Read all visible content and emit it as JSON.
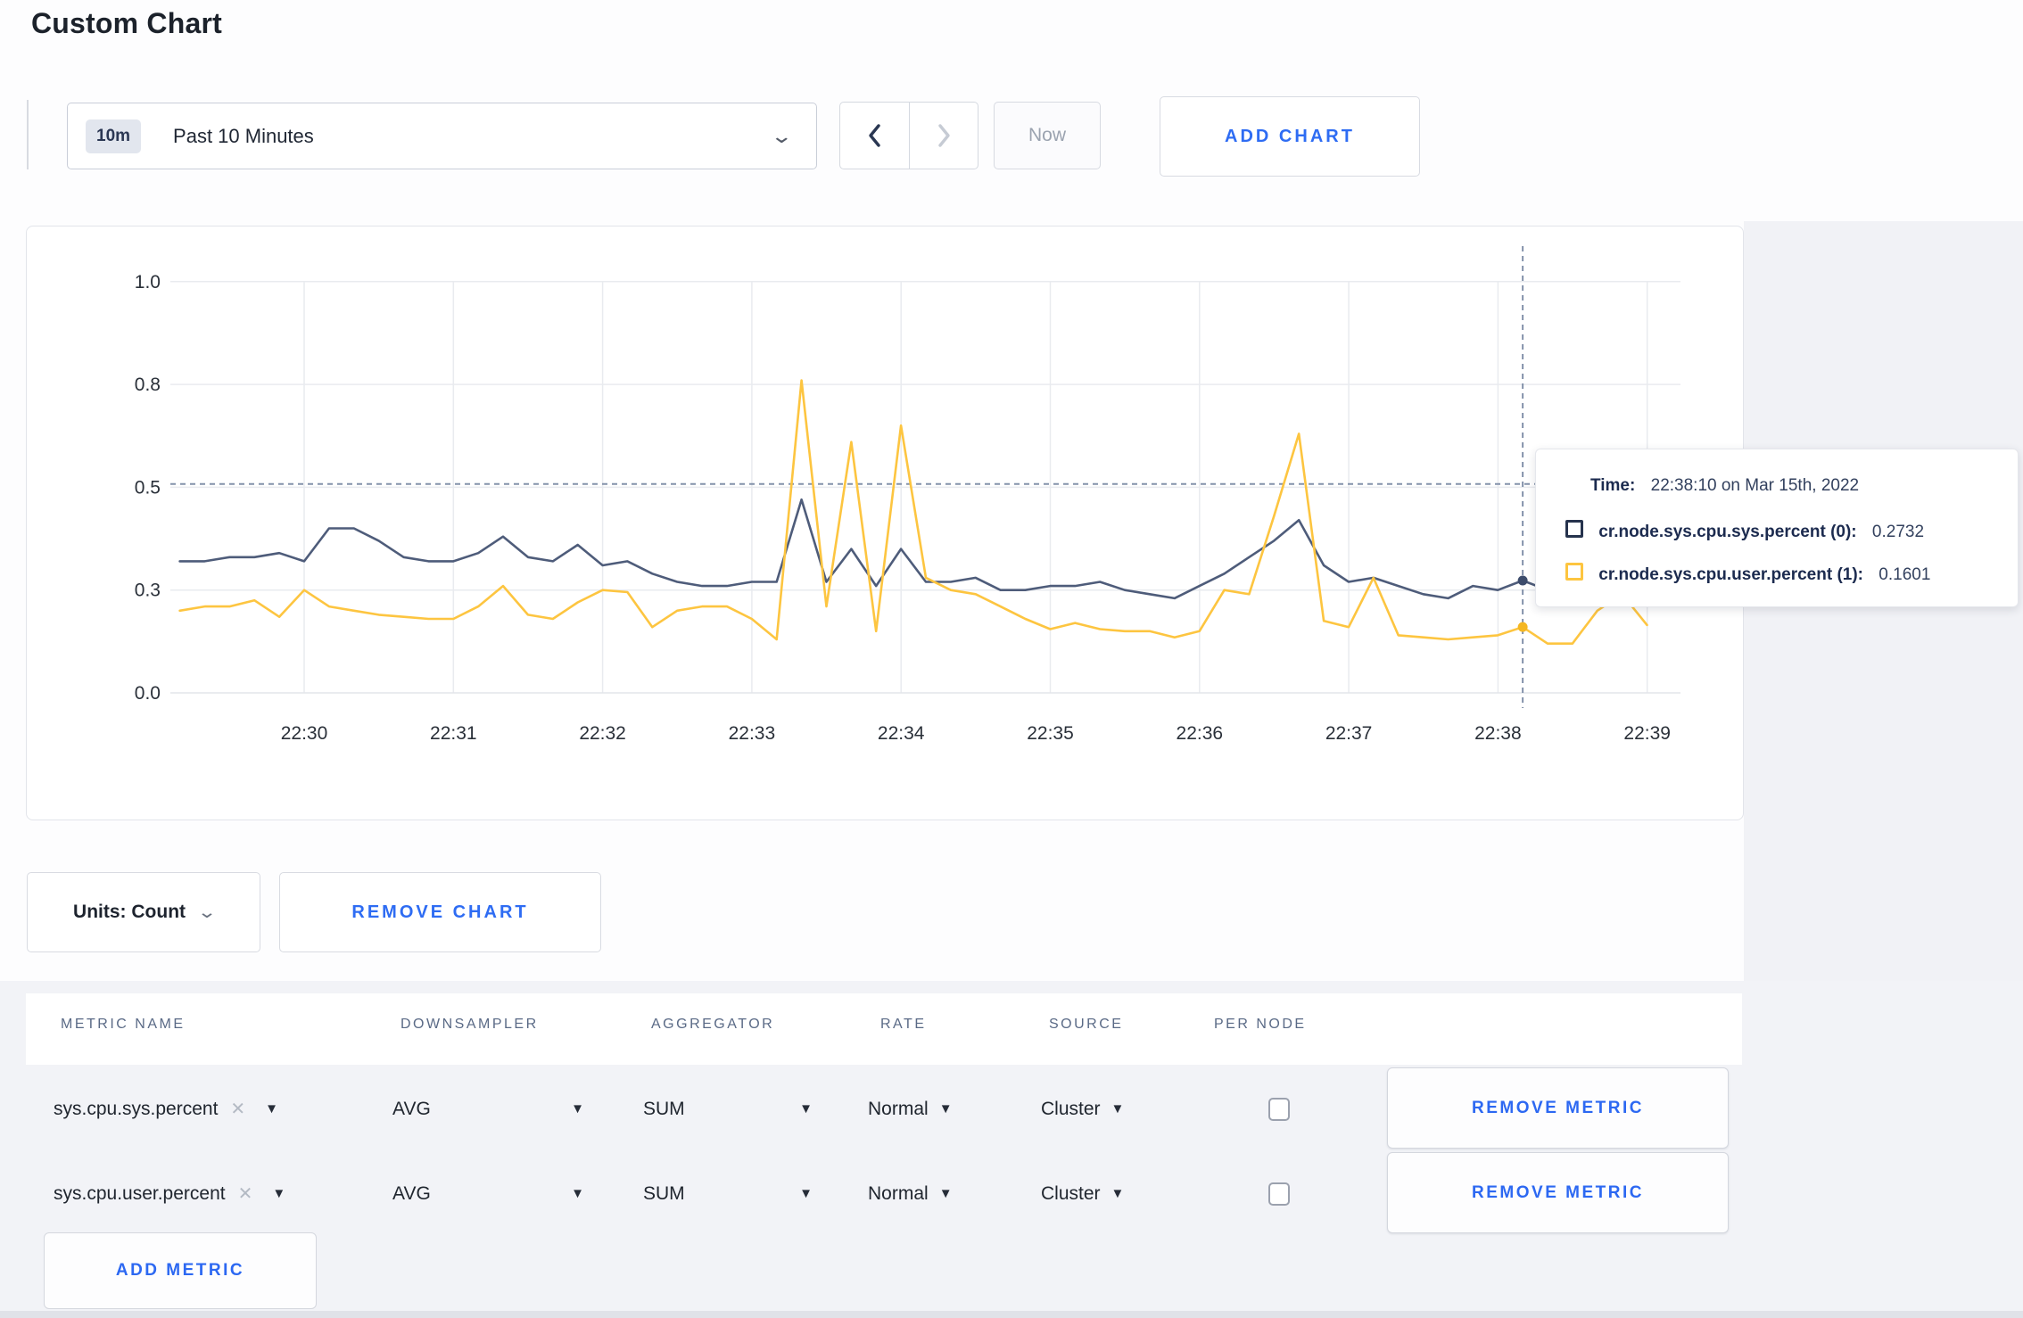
{
  "page": {
    "title": "Custom Chart"
  },
  "toolbar": {
    "time_range": {
      "badge": "10m",
      "label": "Past 10 Minutes"
    },
    "now_label": "Now",
    "add_chart_label": "ADD CHART"
  },
  "chart_data": {
    "type": "line",
    "title": "",
    "xlabel": "",
    "ylabel": "",
    "ylim": [
      0,
      1.0
    ],
    "grid": true,
    "x_start": "22:29:10",
    "x_interval_seconds": 10,
    "x_tick_labels": [
      "22:30",
      "22:31",
      "22:32",
      "22:33",
      "22:34",
      "22:35",
      "22:36",
      "22:37",
      "22:38",
      "22:39"
    ],
    "y_ticks": [
      {
        "value": 0,
        "label": "0.0"
      },
      {
        "value": 0.25,
        "label": "0.3"
      },
      {
        "value": 0.5,
        "label": "0.5"
      },
      {
        "value": 0.75,
        "label": "0.8"
      },
      {
        "value": 1.0,
        "label": "1.0"
      }
    ],
    "series": [
      {
        "name": "cr.node.sys.cpu.sys.percent (0)",
        "color": "#4e5c7a",
        "dot_color": "#3d4c6c",
        "values": [
          0.32,
          0.32,
          0.33,
          0.33,
          0.34,
          0.32,
          0.4,
          0.4,
          0.37,
          0.33,
          0.32,
          0.32,
          0.34,
          0.38,
          0.33,
          0.32,
          0.36,
          0.31,
          0.32,
          0.29,
          0.27,
          0.26,
          0.26,
          0.27,
          0.27,
          0.47,
          0.27,
          0.35,
          0.26,
          0.35,
          0.27,
          0.27,
          0.28,
          0.25,
          0.25,
          0.26,
          0.26,
          0.27,
          0.25,
          0.24,
          0.23,
          0.26,
          0.29,
          0.33,
          0.37,
          0.42,
          0.31,
          0.27,
          0.28,
          0.26,
          0.24,
          0.23,
          0.26,
          0.25,
          0.2732,
          0.25,
          0.26,
          0.26,
          0.27,
          0.27
        ]
      },
      {
        "name": "cr.node.sys.cpu.user.percent (1)",
        "color": "#fdc540",
        "dot_color": "#f5b722",
        "values": [
          0.2,
          0.21,
          0.21,
          0.225,
          0.185,
          0.25,
          0.21,
          0.2,
          0.19,
          0.185,
          0.18,
          0.18,
          0.21,
          0.26,
          0.19,
          0.18,
          0.22,
          0.25,
          0.245,
          0.16,
          0.2,
          0.21,
          0.21,
          0.18,
          0.13,
          0.76,
          0.21,
          0.61,
          0.15,
          0.65,
          0.28,
          0.25,
          0.24,
          0.21,
          0.18,
          0.155,
          0.17,
          0.155,
          0.15,
          0.15,
          0.135,
          0.15,
          0.25,
          0.24,
          0.43,
          0.63,
          0.175,
          0.16,
          0.28,
          0.14,
          0.135,
          0.13,
          0.135,
          0.14,
          0.1601,
          0.12,
          0.12,
          0.2,
          0.24,
          0.165
        ]
      }
    ],
    "hover": {
      "index": 54,
      "time": "22:38:10",
      "guide_value": 0.508
    },
    "legend_position": "tooltip"
  },
  "tooltip": {
    "time_label": "Time:",
    "time_value": "22:38:10 on Mar 15th, 2022",
    "entries": [
      {
        "name": "cr.node.sys.cpu.sys.percent (0):",
        "value": "0.2732",
        "color": "#26334d"
      },
      {
        "name": "cr.node.sys.cpu.user.percent (1):",
        "value": "0.1601",
        "color": "#fdc540"
      }
    ]
  },
  "chart_controls": {
    "units_label": "Units: Count",
    "remove_chart_label": "REMOVE CHART"
  },
  "metrics_table": {
    "headers": [
      "METRIC NAME",
      "DOWNSAMPLER",
      "AGGREGATOR",
      "RATE",
      "SOURCE",
      "PER NODE"
    ],
    "rows": [
      {
        "metric_name": "sys.cpu.sys.percent",
        "downsampler": "AVG",
        "aggregator": "SUM",
        "rate": "Normal",
        "source": "Cluster",
        "per_node_checked": false,
        "remove_label": "REMOVE METRIC"
      },
      {
        "metric_name": "sys.cpu.user.percent",
        "downsampler": "AVG",
        "aggregator": "SUM",
        "rate": "Normal",
        "source": "Cluster",
        "per_node_checked": false,
        "remove_label": "REMOVE METRIC"
      }
    ],
    "add_metric_label": "ADD METRIC"
  },
  "colors": {
    "accent_blue": "#2e6cf3",
    "navy": "#1c2b4f",
    "series_sys": "#4e5c7a",
    "series_user": "#fdc540",
    "page_gray": "#f2f3f7"
  }
}
